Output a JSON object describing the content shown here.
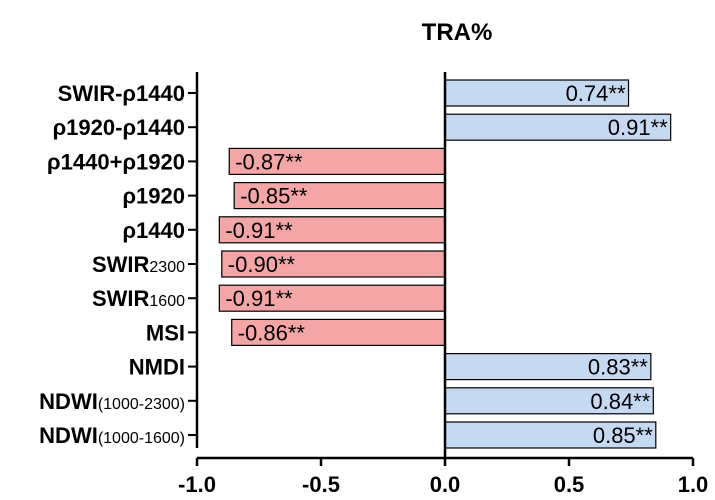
{
  "chart_data": {
    "type": "bar",
    "orientation": "horizontal",
    "title": "TRA%",
    "xlabel": "",
    "ylabel": "",
    "xlim": [
      -1.0,
      1.0
    ],
    "x_ticks": [
      -1.0,
      -0.5,
      0.0,
      0.5,
      1.0
    ],
    "x_tick_labels": [
      "-1.0",
      "-0.5",
      "0.0",
      "0.5",
      "1.0"
    ],
    "grid": false,
    "legend": "none",
    "colors": {
      "positive": "#c5d9f1",
      "negative": "#f4a6a6",
      "bar_stroke": "#000000"
    },
    "categories": [
      {
        "name": "SWIR-ρ1440"
      },
      {
        "name": "ρ1920-ρ1440"
      },
      {
        "name": "ρ1440+ρ1920"
      },
      {
        "name": "ρ1920"
      },
      {
        "name": "ρ1440"
      },
      {
        "name": "SWIR",
        "sub": "2300"
      },
      {
        "name": "SWIR",
        "sub": "1600"
      },
      {
        "name": "MSI"
      },
      {
        "name": "NMDI"
      },
      {
        "name": "NDWI",
        "sub": "(1000-2300)"
      },
      {
        "name": "NDWI",
        "sub": "(1000-1600)"
      }
    ],
    "values": [
      0.74,
      0.91,
      -0.87,
      -0.85,
      -0.91,
      -0.9,
      -0.91,
      -0.86,
      0.83,
      0.84,
      0.85
    ],
    "data_labels": [
      "0.74**",
      "0.91**",
      "-0.87**",
      "-0.85**",
      "-0.91**",
      "-0.90**",
      "-0.91**",
      "-0.86**",
      "0.83**",
      "0.84**",
      "0.85**"
    ]
  }
}
